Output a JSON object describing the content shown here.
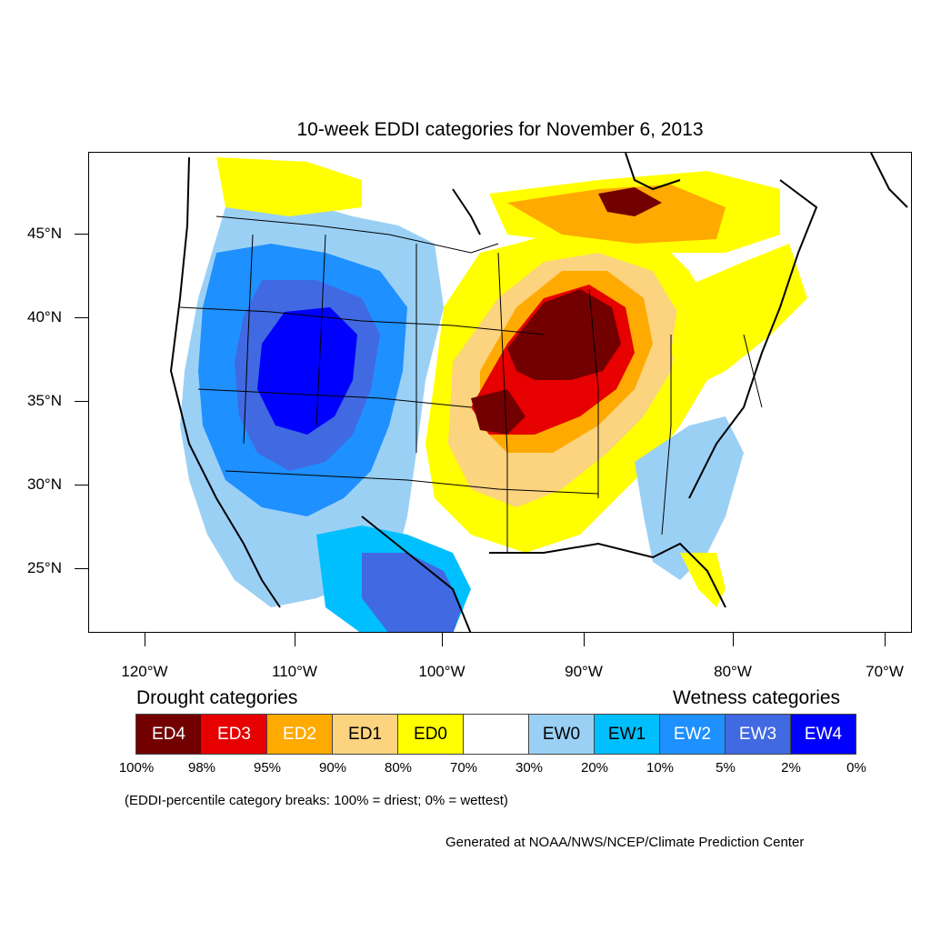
{
  "title": "10-week EDDI categories for November 6, 2013",
  "lat_labels": [
    "45°N",
    "40°N",
    "35°N",
    "30°N",
    "25°N"
  ],
  "lon_labels": [
    "120°W",
    "110°W",
    "100°W",
    "90°W",
    "80°W",
    "70°W"
  ],
  "legend": {
    "drought_heading": "Drought categories",
    "wetness_heading": "Wetness categories",
    "categories": [
      {
        "label": "ED4",
        "color": "#730000",
        "text_color": "#ffffff"
      },
      {
        "label": "ED3",
        "color": "#e60000",
        "text_color": "#ffffff"
      },
      {
        "label": "ED2",
        "color": "#ffaa00",
        "text_color": "#ffffff"
      },
      {
        "label": "ED1",
        "color": "#fcd37f",
        "text_color": "#000000"
      },
      {
        "label": "ED0",
        "color": "#ffff00",
        "text_color": "#000000"
      },
      {
        "label": "",
        "color": "#ffffff",
        "text_color": "#000000"
      },
      {
        "label": "EW0",
        "color": "#9bd0f5",
        "text_color": "#000000"
      },
      {
        "label": "EW1",
        "color": "#00bfff",
        "text_color": "#000000"
      },
      {
        "label": "EW2",
        "color": "#1e90ff",
        "text_color": "#ffffff"
      },
      {
        "label": "EW3",
        "color": "#4169e1",
        "text_color": "#ffffff"
      },
      {
        "label": "EW4",
        "color": "#0000ff",
        "text_color": "#ffffff"
      }
    ],
    "breaks": [
      "100%",
      "98%",
      "95%",
      "90%",
      "80%",
      "70%",
      "30%",
      "20%",
      "10%",
      "5%",
      "2%",
      "0%"
    ]
  },
  "note": "(EDDI-percentile category breaks: 100% = driest; 0% = wettest)",
  "credit": "Generated at NOAA/NWS/NCEP/Climate Prediction Center"
}
